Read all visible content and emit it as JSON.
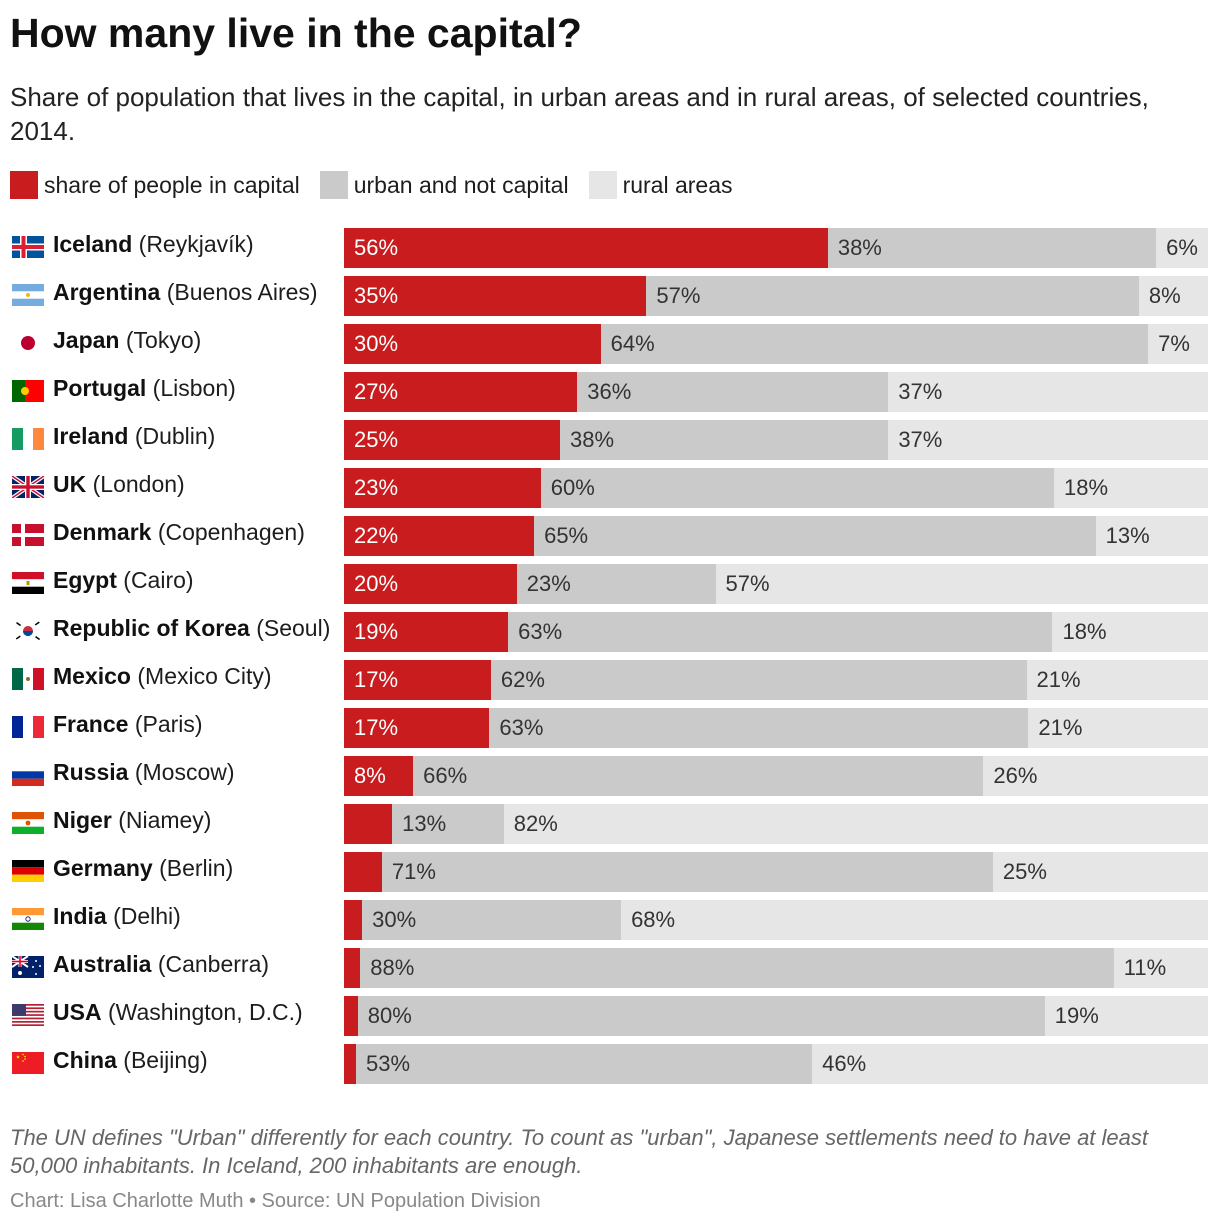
{
  "title": "How many live in the capital?",
  "subtitle": "Share of population that lives in the capital, in urban areas and in rural areas, of selected countries, 2014.",
  "note": "The UN defines \"Urban\" differently for each country. To count as \"urban\", Japanese settlements need to have at least 50,000 inhabitants. In Iceland, 200 inhabitants are enough.",
  "source": "Chart: Lisa Charlotte Muth • Source: UN Population Division",
  "chart_data": {
    "type": "bar",
    "orientation": "horizontal",
    "stacked": true,
    "unit": "%",
    "legend": [
      "share of people in capital",
      "urban and not capital",
      "rural areas"
    ],
    "colors": {
      "capital": "#c81c1f",
      "urban": "#cacaca",
      "rural": "#e6e6e6"
    },
    "rows": [
      {
        "country": "Iceland",
        "capital": "(Reykjavík)",
        "flag": "iceland-flag-icon",
        "values": [
          56,
          38,
          6
        ]
      },
      {
        "country": "Argentina",
        "capital": "(Buenos Aires)",
        "flag": "argentina-flag-icon",
        "values": [
          35,
          57,
          8
        ]
      },
      {
        "country": "Japan",
        "capital": "(Tokyo)",
        "flag": "japan-flag-icon",
        "values": [
          30,
          64,
          7
        ]
      },
      {
        "country": "Portugal",
        "capital": "(Lisbon)",
        "flag": "portugal-flag-icon",
        "values": [
          27,
          36,
          37
        ]
      },
      {
        "country": "Ireland",
        "capital": "(Dublin)",
        "flag": "ireland-flag-icon",
        "values": [
          25,
          38,
          37
        ]
      },
      {
        "country": "UK",
        "capital": "(London)",
        "flag": "uk-flag-icon",
        "values": [
          23,
          60,
          18
        ]
      },
      {
        "country": "Denmark",
        "capital": "(Copenhagen)",
        "flag": "denmark-flag-icon",
        "values": [
          22,
          65,
          13
        ]
      },
      {
        "country": "Egypt",
        "capital": "(Cairo)",
        "flag": "egypt-flag-icon",
        "values": [
          20,
          23,
          57
        ]
      },
      {
        "country": "Republic of Korea",
        "capital": "(Seoul)",
        "flag": "korea-flag-icon",
        "values": [
          19,
          63,
          18
        ]
      },
      {
        "country": "Mexico",
        "capital": "(Mexico City)",
        "flag": "mexico-flag-icon",
        "values": [
          17,
          62,
          21
        ]
      },
      {
        "country": "France",
        "capital": "(Paris)",
        "flag": "france-flag-icon",
        "values": [
          17,
          63,
          21
        ]
      },
      {
        "country": "Russia",
        "capital": "(Moscow)",
        "flag": "russia-flag-icon",
        "values": [
          8,
          66,
          26
        ]
      },
      {
        "country": "Niger",
        "capital": "(Niamey)",
        "flag": "niger-flag-icon",
        "values": [
          5.6,
          13,
          82
        ]
      },
      {
        "country": "Germany",
        "capital": "(Berlin)",
        "flag": "germany-flag-icon",
        "values": [
          4.4,
          71,
          25
        ]
      },
      {
        "country": "India",
        "capital": "(Delhi)",
        "flag": "india-flag-icon",
        "values": [
          2.1,
          30,
          68
        ]
      },
      {
        "country": "Australia",
        "capital": "(Canberra)",
        "flag": "australia-flag-icon",
        "values": [
          1.9,
          88,
          11
        ]
      },
      {
        "country": "USA",
        "capital": "(Washington, D.C.)",
        "flag": "usa-flag-icon",
        "values": [
          1.6,
          80,
          19
        ]
      },
      {
        "country": "China",
        "capital": "(Beijing)",
        "flag": "china-flag-icon",
        "values": [
          1.4,
          53,
          46
        ]
      }
    ]
  }
}
